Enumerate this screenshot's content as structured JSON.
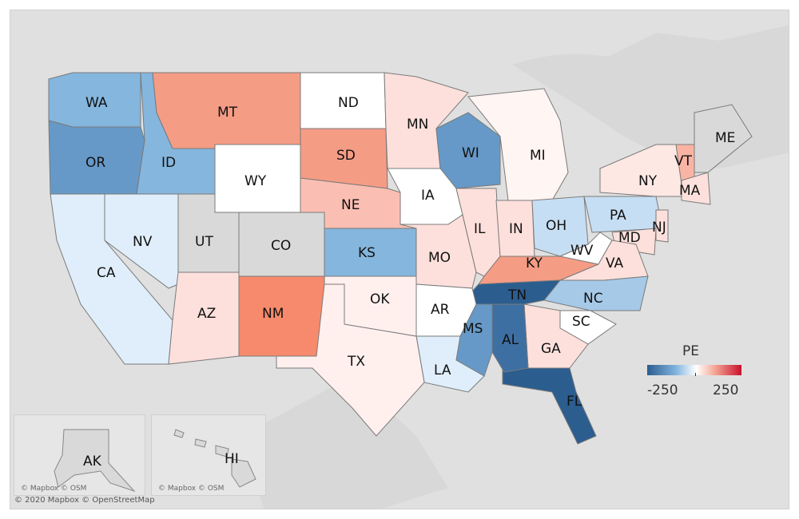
{
  "legend": {
    "title": "PE",
    "min_label": "-250",
    "max_label": "250",
    "min": -250,
    "max": 250,
    "colors": [
      "#2b5d8f",
      "#ffffff",
      "#c8102e"
    ]
  },
  "credits": {
    "inset": "© Mapbox © OSM",
    "main": "© 2020 Mapbox © OpenStreetMap"
  },
  "no_data_color": "#d9d9d9",
  "states": [
    {
      "abbr": "WA",
      "fill": "#85b6dd"
    },
    {
      "abbr": "OR",
      "fill": "#6699c7"
    },
    {
      "abbr": "ID",
      "fill": "#85b6dd"
    },
    {
      "abbr": "MT",
      "fill": "#f59c85"
    },
    {
      "abbr": "WY",
      "fill": "#ffffff"
    },
    {
      "abbr": "ND",
      "fill": "#ffffff"
    },
    {
      "abbr": "SD",
      "fill": "#f59c85"
    },
    {
      "abbr": "NE",
      "fill": "#fabfb2"
    },
    {
      "abbr": "MN",
      "fill": "#fde0dc"
    },
    {
      "abbr": "WI",
      "fill": "#6699c7"
    },
    {
      "abbr": "MI",
      "fill": "#fff5f3"
    },
    {
      "abbr": "IA",
      "fill": "#ffffff"
    },
    {
      "abbr": "CA",
      "fill": "#dfeefa"
    },
    {
      "abbr": "NV",
      "fill": "#dfeefa"
    },
    {
      "abbr": "UT",
      "fill": "#d9d9d9"
    },
    {
      "abbr": "CO",
      "fill": "#d9d9d9"
    },
    {
      "abbr": "KS",
      "fill": "#85b6dd"
    },
    {
      "abbr": "MO",
      "fill": "#fde0dc"
    },
    {
      "abbr": "IL",
      "fill": "#fde0dc"
    },
    {
      "abbr": "IN",
      "fill": "#fde0dc"
    },
    {
      "abbr": "OH",
      "fill": "#c6def3"
    },
    {
      "abbr": "KY",
      "fill": "#f59c85"
    },
    {
      "abbr": "WV",
      "fill": "#ffffff"
    },
    {
      "abbr": "PA",
      "fill": "#c6def3"
    },
    {
      "abbr": "NY",
      "fill": "#fde8e4"
    },
    {
      "abbr": "VT",
      "fill": "#f9b4a4"
    },
    {
      "abbr": "ME",
      "fill": "#d9d9d9"
    },
    {
      "abbr": "MA",
      "fill": "#fde0dc"
    },
    {
      "abbr": "NJ",
      "fill": "#fde0dc"
    },
    {
      "abbr": "MD",
      "fill": "#fde0dc"
    },
    {
      "abbr": "VA",
      "fill": "#fde0dc"
    },
    {
      "abbr": "NC",
      "fill": "#a5c9e7"
    },
    {
      "abbr": "SC",
      "fill": "#ffffff"
    },
    {
      "abbr": "GA",
      "fill": "#fde0dc"
    },
    {
      "abbr": "FL",
      "fill": "#2b5d8f"
    },
    {
      "abbr": "AL",
      "fill": "#3d6fa3"
    },
    {
      "abbr": "MS",
      "fill": "#6699c7"
    },
    {
      "abbr": "TN",
      "fill": "#2b5d8f"
    },
    {
      "abbr": "AR",
      "fill": "#ffffff"
    },
    {
      "abbr": "LA",
      "fill": "#dfeefa"
    },
    {
      "abbr": "TX",
      "fill": "#fff0ee"
    },
    {
      "abbr": "OK",
      "fill": "#fff0ee"
    },
    {
      "abbr": "NM",
      "fill": "#f78a6c"
    },
    {
      "abbr": "AZ",
      "fill": "#fde0dc"
    },
    {
      "abbr": "AK",
      "fill": "#d9d9d9"
    },
    {
      "abbr": "HI",
      "fill": "#d9d9d9"
    }
  ]
}
